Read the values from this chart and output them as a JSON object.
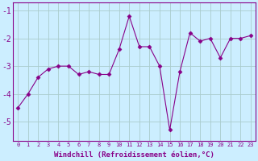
{
  "x": [
    0,
    1,
    2,
    3,
    4,
    5,
    6,
    7,
    8,
    9,
    10,
    11,
    12,
    13,
    14,
    15,
    16,
    17,
    18,
    19,
    20,
    21,
    22,
    23
  ],
  "y": [
    -4.5,
    -4.0,
    -3.4,
    -3.1,
    -3.0,
    -3.0,
    -3.3,
    -3.2,
    -3.3,
    -3.3,
    -2.4,
    -1.2,
    -2.3,
    -2.3,
    -3.0,
    -5.3,
    -3.2,
    -1.8,
    -2.1,
    -2.0,
    -2.7,
    -2.0,
    -2.0,
    -1.9
  ],
  "xlabel": "Windchill (Refroidissement éolien,°C)",
  "xtick_labels": [
    "0",
    "1",
    "2",
    "3",
    "4",
    "5",
    "6",
    "7",
    "8",
    "9",
    "10",
    "11",
    "12",
    "13",
    "14",
    "15",
    "16",
    "17",
    "18",
    "19",
    "20",
    "21",
    "22",
    "23"
  ],
  "ylim": [
    -5.7,
    -0.7
  ],
  "yticks": [
    -5,
    -4,
    -3,
    -2,
    -1
  ],
  "line_color": "#880088",
  "marker": "D",
  "marker_size": 2.5,
  "bg_color": "#cceeff",
  "grid_color": "#aacccc",
  "xlabel_color": "#880088",
  "tick_color": "#880088",
  "spine_color": "#880088"
}
